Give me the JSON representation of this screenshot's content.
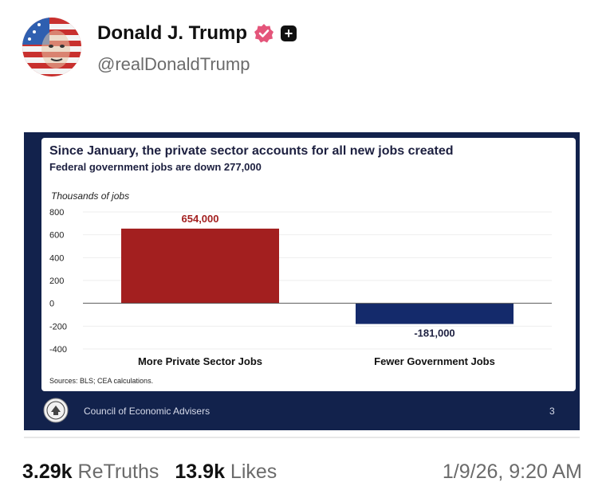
{
  "post": {
    "author": {
      "display_name": "Donald J. Trump",
      "handle": "@realDonaldTrump",
      "verified_icon": "verified-badge-icon",
      "plus_icon": "plus-icon"
    },
    "stats": {
      "retruths_count": "3.29k",
      "retruths_label": "ReTruths",
      "likes_count": "13.9k",
      "likes_label": "Likes"
    },
    "timestamp": "1/9/26, 9:20 AM"
  },
  "slide": {
    "footer_org": "Council of Economic Advisers",
    "page_number": "3",
    "source_note": "Sources: BLS; CEA calculations.",
    "colors": {
      "background": "#12224c",
      "positive_bar": "#a31f1f",
      "negative_bar": "#142a6b"
    }
  },
  "chart_data": {
    "type": "bar",
    "title": "Since January, the private sector accounts for all new jobs created",
    "subtitle": "Federal government jobs are down 277,000",
    "ylabel": "Thousands of jobs",
    "xlabel": "",
    "categories": [
      "More Private Sector Jobs",
      "Fewer Government Jobs"
    ],
    "values": [
      654,
      -181
    ],
    "data_labels": [
      "654,000",
      "-181,000"
    ],
    "yticks": [
      800,
      600,
      400,
      200,
      0,
      -200,
      -400
    ],
    "ytick_labels": [
      "800",
      "600",
      "400",
      "200",
      "0",
      "-200",
      "-400"
    ],
    "ylim": [
      -400,
      800
    ],
    "grid": true
  }
}
